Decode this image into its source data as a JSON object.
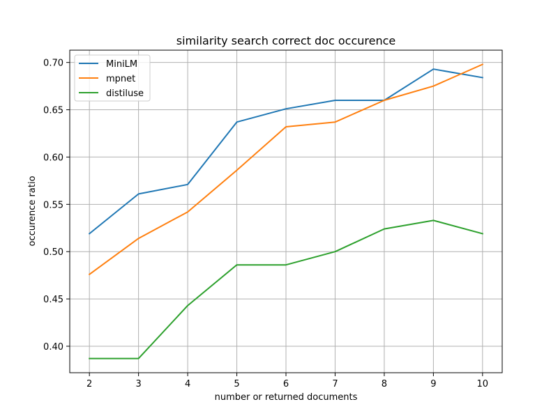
{
  "chart_data": {
    "type": "line",
    "title": "similarity search correct doc occurence",
    "xlabel": "number or returned documents",
    "ylabel": "occurence ratio",
    "x": [
      2,
      3,
      4,
      5,
      6,
      7,
      8,
      9,
      10
    ],
    "xlim": [
      1.6,
      10.4
    ],
    "ylim": [
      0.372,
      0.713
    ],
    "xticks": [
      2,
      3,
      4,
      5,
      6,
      7,
      8,
      9,
      10
    ],
    "yticks": [
      0.4,
      0.45,
      0.5,
      0.55,
      0.6,
      0.65,
      0.7
    ],
    "ytick_labels": [
      "0.40",
      "0.45",
      "0.50",
      "0.55",
      "0.60",
      "0.65",
      "0.70"
    ],
    "grid": true,
    "legend_position": "top-left",
    "series": [
      {
        "name": "MiniLM",
        "color": "#1f77b4",
        "values": [
          0.519,
          0.561,
          0.571,
          0.637,
          0.651,
          0.66,
          0.66,
          0.693,
          0.684
        ]
      },
      {
        "name": "mpnet",
        "color": "#ff7f0e",
        "values": [
          0.476,
          0.514,
          0.542,
          0.586,
          0.632,
          0.637,
          0.66,
          0.675,
          0.698
        ]
      },
      {
        "name": "distiluse",
        "color": "#2ca02c",
        "values": [
          0.387,
          0.387,
          0.443,
          0.486,
          0.486,
          0.5,
          0.524,
          0.533,
          0.519
        ]
      }
    ]
  }
}
